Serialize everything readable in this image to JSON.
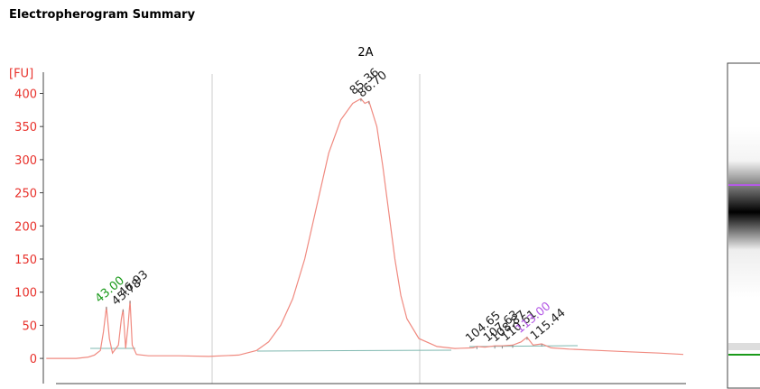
{
  "chart_data": {
    "type": "line",
    "title": "Electropherogram Summary",
    "subtitle": "2A",
    "ylabel": "[FU]",
    "axis_color": "#e8312b",
    "ylim": [
      -38,
      432
    ],
    "yticks": [
      0,
      50,
      100,
      150,
      200,
      250,
      300,
      350,
      400
    ],
    "xlim": [
      32.5,
      139
    ],
    "series": [
      {
        "color": "#f08a80",
        "x": [
          33,
          38,
          40,
          41,
          42,
          42.5,
          43,
          43.5,
          44,
          45,
          45.5,
          45.78,
          46.2,
          46.6,
          46.93,
          47.3,
          48,
          50,
          55,
          60,
          65,
          68,
          70,
          72,
          74,
          76,
          78,
          80,
          82,
          84,
          85.36,
          86,
          86.7,
          88,
          89,
          90,
          91,
          92,
          93,
          95,
          98,
          101,
          104,
          104.65,
          106,
          107.63,
          108.87,
          110.61,
          112,
          113,
          114,
          115.44,
          117,
          120,
          125,
          130,
          135,
          139
        ],
        "values": [
          0,
          0,
          2,
          5,
          12,
          40,
          78,
          30,
          8,
          20,
          60,
          74,
          15,
          50,
          87,
          20,
          6,
          4,
          4,
          3,
          5,
          12,
          25,
          50,
          90,
          150,
          230,
          310,
          360,
          385,
          392,
          385,
          388,
          350,
          290,
          220,
          150,
          95,
          60,
          30,
          18,
          15,
          16,
          18,
          17,
          19,
          19,
          20,
          25,
          32,
          20,
          22,
          16,
          14,
          12,
          10,
          8,
          6
        ]
      }
    ],
    "peaks": [
      {
        "value": 43,
        "label": "43.00",
        "color": "#1a9a1a"
      },
      {
        "value": 45.78,
        "label": "45.78",
        "color": "#222222"
      },
      {
        "value": 46.93,
        "label": "46.93",
        "color": "#222222"
      },
      {
        "value": 85.36,
        "label": "85.36",
        "color": "#222222"
      },
      {
        "value": 86.7,
        "label": "86.70",
        "color": "#222222"
      },
      {
        "value": 104.65,
        "label": "104.65",
        "color": "#222222"
      },
      {
        "value": 107.63,
        "label": "107.63",
        "color": "#222222"
      },
      {
        "value": 108.87,
        "label": "108.87",
        "color": "#222222"
      },
      {
        "value": 110.61,
        "label": "110.61",
        "color": "#222222"
      },
      {
        "value": 113,
        "label": "113.00",
        "color": "#b45ae6"
      },
      {
        "value": 115.44,
        "label": "115.44",
        "color": "#222222"
      }
    ]
  }
}
